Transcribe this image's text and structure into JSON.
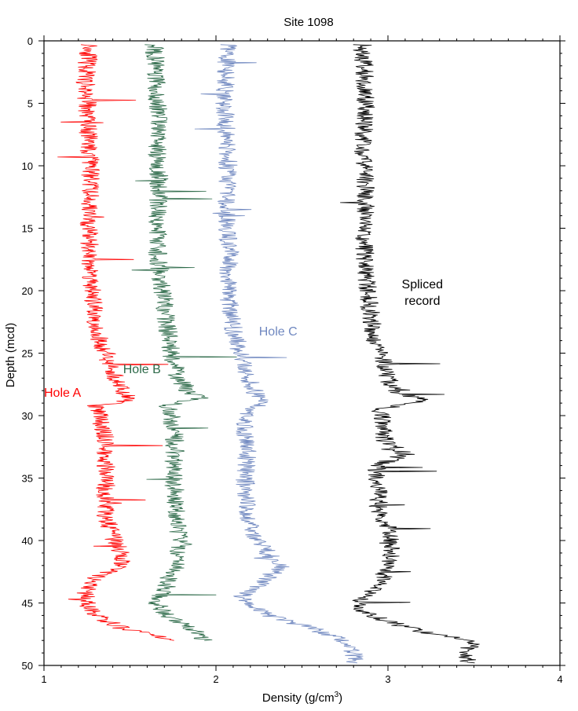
{
  "chart_data": {
    "type": "line",
    "title": "Site 1098",
    "xlabel": "Density (g/cm",
    "xlabel_sup": "3",
    "xlabel_end": ")",
    "ylabel": "Depth (mcd)",
    "xlim": [
      1,
      4
    ],
    "ylim": [
      0,
      50
    ],
    "y_inverted": true,
    "x_ticks": [
      1,
      2,
      3,
      4
    ],
    "y_ticks": [
      0,
      5,
      10,
      15,
      20,
      25,
      30,
      35,
      40,
      45,
      50
    ],
    "grid": false,
    "series": [
      {
        "name": "Hole A",
        "color": "#ff0000",
        "label_at": {
          "x": 1.0,
          "y": 28.5
        },
        "depth": [
          0.3,
          1,
          3,
          5,
          8,
          10,
          12,
          15,
          18,
          20,
          22,
          23,
          24,
          25,
          26,
          27,
          28,
          28.8,
          29.2,
          30,
          31,
          32,
          33,
          34,
          35,
          36,
          37,
          38,
          39,
          40,
          41,
          42,
          43,
          44,
          45,
          46,
          47,
          47.8,
          48
        ],
        "density": [
          1.27,
          1.26,
          1.24,
          1.25,
          1.26,
          1.27,
          1.27,
          1.26,
          1.27,
          1.28,
          1.29,
          1.31,
          1.32,
          1.36,
          1.39,
          1.42,
          1.45,
          1.5,
          1.3,
          1.33,
          1.34,
          1.36,
          1.34,
          1.36,
          1.38,
          1.35,
          1.37,
          1.36,
          1.38,
          1.41,
          1.45,
          1.45,
          1.3,
          1.24,
          1.25,
          1.3,
          1.45,
          1.7,
          1.75
        ]
      },
      {
        "name": "Hole B",
        "color": "#2e6b4a",
        "label_at": {
          "x": 1.46,
          "y": 26.6
        },
        "depth": [
          0.3,
          2,
          5,
          7,
          9,
          12,
          15,
          17,
          19,
          21,
          23,
          25,
          26,
          27,
          28,
          28.6,
          29.2,
          30,
          32,
          33,
          35,
          37,
          39,
          40.5,
          42,
          44,
          45,
          46,
          47,
          47.8,
          48
        ],
        "density": [
          1.64,
          1.65,
          1.66,
          1.67,
          1.66,
          1.67,
          1.66,
          1.66,
          1.68,
          1.7,
          1.72,
          1.74,
          1.76,
          1.78,
          1.84,
          1.9,
          1.72,
          1.74,
          1.76,
          1.76,
          1.75,
          1.77,
          1.78,
          1.79,
          1.76,
          1.7,
          1.65,
          1.72,
          1.85,
          1.92,
          1.95
        ]
      },
      {
        "name": "Hole C",
        "color": "#7088c0",
        "label_at": {
          "x": 2.25,
          "y": 23.6
        },
        "depth": [
          0.3,
          2,
          5,
          8,
          10,
          13,
          15,
          17,
          19,
          21,
          23,
          25,
          26,
          27,
          28,
          28.9,
          30,
          31,
          33,
          35,
          37,
          39,
          41,
          42,
          43,
          44.5,
          46,
          47,
          48,
          49,
          49.8
        ],
        "density": [
          2.08,
          2.06,
          2.05,
          2.06,
          2.07,
          2.06,
          2.06,
          2.08,
          2.07,
          2.08,
          2.1,
          2.14,
          2.17,
          2.19,
          2.22,
          2.26,
          2.17,
          2.16,
          2.18,
          2.17,
          2.18,
          2.2,
          2.3,
          2.38,
          2.3,
          2.15,
          2.3,
          2.55,
          2.75,
          2.8,
          2.8
        ]
      },
      {
        "name": "Spliced record",
        "label_lines": [
          "Spliced",
          "record"
        ],
        "color": "#000000",
        "label_at": {
          "x": 3.2,
          "y": 19.8
        },
        "depth": [
          0.3,
          2,
          5,
          8,
          10,
          13,
          15,
          18,
          20,
          22,
          24,
          25,
          26,
          27,
          28,
          28.8,
          29.5,
          30,
          32,
          33.1,
          34,
          36,
          38,
          39,
          40.5,
          42,
          43.5,
          44.5,
          45.5,
          46.5,
          47.5,
          48,
          49,
          49.8
        ],
        "density": [
          2.85,
          2.86,
          2.87,
          2.86,
          2.86,
          2.87,
          2.86,
          2.87,
          2.88,
          2.9,
          2.92,
          2.95,
          2.98,
          3.0,
          3.03,
          3.2,
          2.95,
          2.97,
          2.98,
          3.1,
          2.93,
          2.95,
          2.94,
          3.0,
          3.03,
          3.0,
          2.95,
          2.85,
          2.84,
          3.0,
          3.25,
          3.5,
          3.45,
          3.48
        ]
      }
    ]
  }
}
